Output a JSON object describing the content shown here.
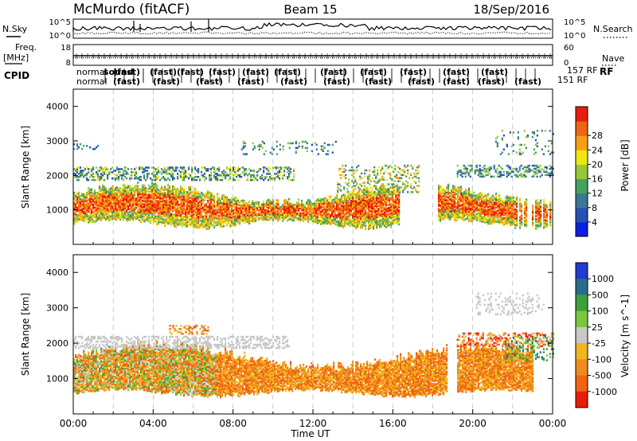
{
  "header": {
    "station": "McMurdo (fitACF)",
    "beam": "Beam 15",
    "date": "18/Sep/2016"
  },
  "strip_labels": {
    "nsky": "N.Sky",
    "nsearch": "N.Search",
    "freq": "Freq.",
    "freq_unit": "[MHz]",
    "nave": "Nave",
    "cpid": "CPID",
    "rf": "RF",
    "cpid_right_1": "157 RF",
    "cpid_right_2": "151 RF"
  },
  "strip_ticks": {
    "noise_left": [
      "10^5",
      "10^0"
    ],
    "noise_right": [
      "10^5",
      "10^0"
    ],
    "freq_left": [
      "18",
      "8"
    ],
    "nave_right": [
      "60",
      "0"
    ]
  },
  "cpid_modes": {
    "row1": [
      "normal",
      "sound",
      "(fast)",
      "(fast)",
      "(fast)",
      "(fast)",
      "(fast)",
      "(fast)",
      "(fast)",
      "(fast)",
      "(fast)",
      "(fast)",
      "(fast)"
    ],
    "row2": [
      "normal",
      "(fast)",
      "(fast)",
      "(fast)",
      "(fast)",
      "(fast)",
      "(fast)",
      "(fast)",
      "(fast)",
      "(fast)",
      "(fast)",
      "(fast)"
    ]
  },
  "chart_data": [
    {
      "type": "heatmap",
      "panel": "power",
      "xlabel": "",
      "ylabel": "Slant Range [km]",
      "xlim": [
        "00:00",
        "24:00"
      ],
      "ylim": [
        0,
        4500
      ],
      "yticks": [
        1000,
        2000,
        3000,
        4000
      ],
      "colorbar_label": "Power [dB]",
      "colorbar_ticks": [
        4,
        8,
        12,
        16,
        20,
        24,
        28
      ],
      "colorbar_colors": [
        "#0a1ee6",
        "#2850b4",
        "#3c7896",
        "#46a064",
        "#96c83c",
        "#f0e614",
        "#f5a014",
        "#f06414",
        "#e61e0a"
      ]
    },
    {
      "type": "heatmap",
      "panel": "velocity",
      "xlabel": "Time UT",
      "ylabel": "Slant Range [km]",
      "xlim": [
        "00:00",
        "24:00"
      ],
      "ylim": [
        0,
        4500
      ],
      "xticks": [
        "00:00",
        "04:00",
        "08:00",
        "12:00",
        "16:00",
        "20:00",
        "00:00"
      ],
      "yticks": [
        1000,
        2000,
        3000,
        4000
      ],
      "colorbar_label": "Velocity [m s^-1]",
      "colorbar_ticks": [
        "1000",
        "500",
        "100",
        "25",
        "-25",
        "-100",
        "-500",
        "-1000"
      ],
      "colorbar_colors": [
        "#1e3cd2",
        "#286e8c",
        "#3ca03c",
        "#7ac83c",
        "#c8c8c8",
        "#f0b41e",
        "#f08c1e",
        "#f06414",
        "#e61e0a"
      ]
    }
  ]
}
